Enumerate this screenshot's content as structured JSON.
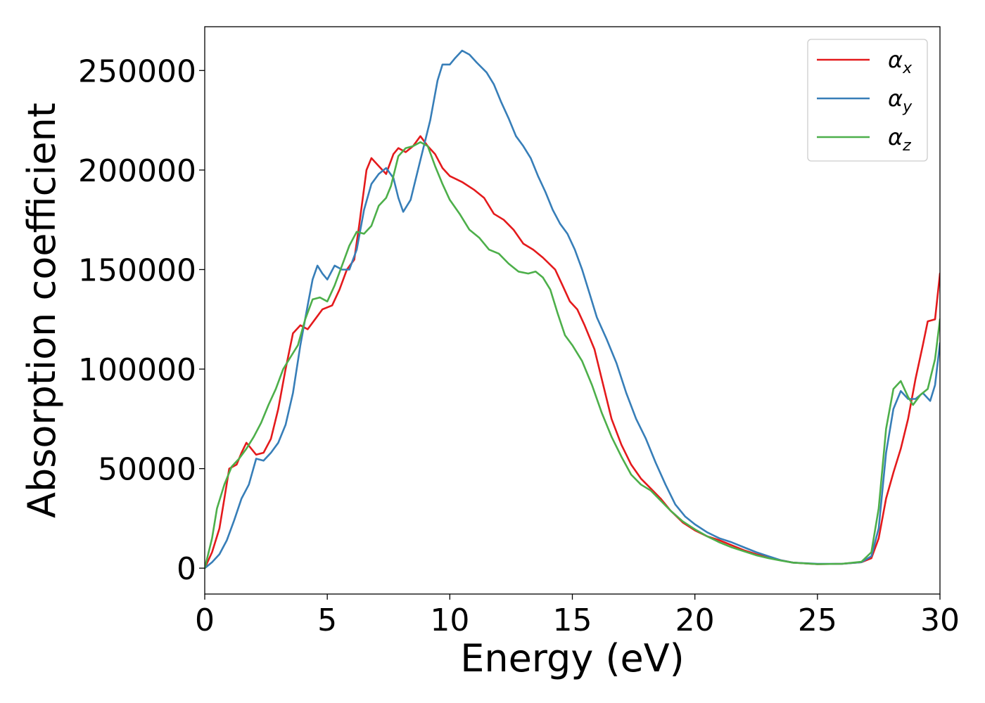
{
  "chart_data": {
    "type": "line",
    "xlabel": "Energy (eV)",
    "ylabel": "Absorption coefficient",
    "xlim": [
      0,
      30
    ],
    "ylim": [
      -13000,
      272000
    ],
    "xticks": [
      0,
      5,
      10,
      15,
      20,
      25,
      30
    ],
    "yticks": [
      0,
      50000,
      100000,
      150000,
      200000,
      250000
    ],
    "xtick_labels": [
      "0",
      "5",
      "10",
      "15",
      "20",
      "25",
      "30"
    ],
    "ytick_labels": [
      "0",
      "50000",
      "100000",
      "150000",
      "200000",
      "250000"
    ],
    "grid": false,
    "legend_position": "top-right",
    "series": [
      {
        "name": "α_x",
        "label_main": "α",
        "label_sub": "x",
        "color": "#e41a1c",
        "points": [
          [
            0,
            0
          ],
          [
            0.3,
            8000
          ],
          [
            0.6,
            20000
          ],
          [
            0.8,
            35000
          ],
          [
            1.0,
            50000
          ],
          [
            1.3,
            52000
          ],
          [
            1.5,
            58000
          ],
          [
            1.7,
            63000
          ],
          [
            1.9,
            60000
          ],
          [
            2.1,
            57000
          ],
          [
            2.4,
            58000
          ],
          [
            2.7,
            65000
          ],
          [
            3.0,
            80000
          ],
          [
            3.3,
            100000
          ],
          [
            3.6,
            118000
          ],
          [
            3.9,
            122000
          ],
          [
            4.2,
            120000
          ],
          [
            4.5,
            125000
          ],
          [
            4.8,
            130000
          ],
          [
            5.2,
            132000
          ],
          [
            5.5,
            140000
          ],
          [
            5.8,
            150000
          ],
          [
            6.1,
            155000
          ],
          [
            6.3,
            172000
          ],
          [
            6.6,
            200000
          ],
          [
            6.8,
            206000
          ],
          [
            7.1,
            202000
          ],
          [
            7.4,
            198000
          ],
          [
            7.7,
            208000
          ],
          [
            7.9,
            211000
          ],
          [
            8.2,
            209000
          ],
          [
            8.5,
            212000
          ],
          [
            8.8,
            217000
          ],
          [
            9.1,
            212000
          ],
          [
            9.4,
            208000
          ],
          [
            9.7,
            201000
          ],
          [
            10.0,
            197000
          ],
          [
            10.5,
            194000
          ],
          [
            11.0,
            190000
          ],
          [
            11.4,
            186000
          ],
          [
            11.8,
            178000
          ],
          [
            12.2,
            175000
          ],
          [
            12.6,
            170000
          ],
          [
            13.0,
            163000
          ],
          [
            13.4,
            160000
          ],
          [
            13.8,
            156000
          ],
          [
            14.3,
            150000
          ],
          [
            14.6,
            142000
          ],
          [
            14.9,
            134000
          ],
          [
            15.2,
            130000
          ],
          [
            15.5,
            122000
          ],
          [
            15.9,
            110000
          ],
          [
            16.2,
            95000
          ],
          [
            16.6,
            75000
          ],
          [
            17.0,
            62000
          ],
          [
            17.4,
            52000
          ],
          [
            17.8,
            45000
          ],
          [
            18.2,
            40000
          ],
          [
            18.6,
            35000
          ],
          [
            19.0,
            29000
          ],
          [
            19.5,
            23000
          ],
          [
            20.0,
            19000
          ],
          [
            20.5,
            16000
          ],
          [
            21.0,
            14000
          ],
          [
            21.5,
            11500
          ],
          [
            22.0,
            9000
          ],
          [
            22.5,
            7000
          ],
          [
            23.0,
            5500
          ],
          [
            23.5,
            4000
          ],
          [
            24.0,
            2800
          ],
          [
            25.0,
            2000
          ],
          [
            26.0,
            2200
          ],
          [
            26.8,
            3000
          ],
          [
            27.2,
            5000
          ],
          [
            27.5,
            15000
          ],
          [
            27.8,
            35000
          ],
          [
            28.1,
            48000
          ],
          [
            28.4,
            60000
          ],
          [
            28.7,
            75000
          ],
          [
            29.0,
            95000
          ],
          [
            29.3,
            112000
          ],
          [
            29.5,
            124000
          ],
          [
            29.8,
            125000
          ],
          [
            30.0,
            148000
          ]
        ]
      },
      {
        "name": "α_y",
        "label_main": "α",
        "label_sub": "y",
        "color": "#377eb8",
        "points": [
          [
            0,
            0
          ],
          [
            0.3,
            3000
          ],
          [
            0.6,
            7000
          ],
          [
            0.9,
            14000
          ],
          [
            1.2,
            24000
          ],
          [
            1.5,
            35000
          ],
          [
            1.8,
            42000
          ],
          [
            2.1,
            55000
          ],
          [
            2.4,
            54000
          ],
          [
            2.7,
            58000
          ],
          [
            3.0,
            63000
          ],
          [
            3.3,
            72000
          ],
          [
            3.6,
            88000
          ],
          [
            3.9,
            112000
          ],
          [
            4.2,
            132000
          ],
          [
            4.4,
            145000
          ],
          [
            4.6,
            152000
          ],
          [
            4.8,
            148000
          ],
          [
            5.0,
            145000
          ],
          [
            5.3,
            152000
          ],
          [
            5.6,
            150000
          ],
          [
            5.9,
            150000
          ],
          [
            6.2,
            160000
          ],
          [
            6.5,
            180000
          ],
          [
            6.8,
            193000
          ],
          [
            7.1,
            198000
          ],
          [
            7.4,
            201000
          ],
          [
            7.7,
            196000
          ],
          [
            7.9,
            186000
          ],
          [
            8.1,
            179000
          ],
          [
            8.4,
            185000
          ],
          [
            8.8,
            205000
          ],
          [
            9.2,
            225000
          ],
          [
            9.5,
            245000
          ],
          [
            9.7,
            253000
          ],
          [
            10.0,
            253000
          ],
          [
            10.2,
            256000
          ],
          [
            10.5,
            260000
          ],
          [
            10.8,
            258000
          ],
          [
            11.1,
            254000
          ],
          [
            11.5,
            249000
          ],
          [
            11.8,
            243000
          ],
          [
            12.1,
            234000
          ],
          [
            12.4,
            226000
          ],
          [
            12.7,
            217000
          ],
          [
            13.0,
            212000
          ],
          [
            13.3,
            206000
          ],
          [
            13.6,
            197000
          ],
          [
            13.9,
            189000
          ],
          [
            14.2,
            180000
          ],
          [
            14.5,
            173000
          ],
          [
            14.8,
            168000
          ],
          [
            15.1,
            160000
          ],
          [
            15.4,
            150000
          ],
          [
            15.7,
            138000
          ],
          [
            16.0,
            126000
          ],
          [
            16.4,
            115000
          ],
          [
            16.8,
            103000
          ],
          [
            17.2,
            88000
          ],
          [
            17.6,
            75000
          ],
          [
            18.0,
            65000
          ],
          [
            18.4,
            53000
          ],
          [
            18.8,
            42000
          ],
          [
            19.2,
            32000
          ],
          [
            19.6,
            26000
          ],
          [
            20.0,
            22000
          ],
          [
            20.5,
            18000
          ],
          [
            21.0,
            15000
          ],
          [
            21.5,
            13000
          ],
          [
            22.0,
            10500
          ],
          [
            22.5,
            8000
          ],
          [
            23.0,
            6000
          ],
          [
            23.5,
            4000
          ],
          [
            24.0,
            2800
          ],
          [
            25.0,
            2200
          ],
          [
            26.0,
            2200
          ],
          [
            26.8,
            3000
          ],
          [
            27.2,
            6000
          ],
          [
            27.5,
            20000
          ],
          [
            27.8,
            58000
          ],
          [
            28.1,
            80000
          ],
          [
            28.4,
            89000
          ],
          [
            28.7,
            85000
          ],
          [
            29.0,
            85000
          ],
          [
            29.3,
            88000
          ],
          [
            29.6,
            84000
          ],
          [
            29.8,
            92000
          ],
          [
            30.0,
            113000
          ]
        ]
      },
      {
        "name": "α_z",
        "label_main": "α",
        "label_sub": "z",
        "color": "#4daf4a",
        "points": [
          [
            0,
            0
          ],
          [
            0.3,
            15000
          ],
          [
            0.5,
            30000
          ],
          [
            0.8,
            42000
          ],
          [
            1.1,
            51000
          ],
          [
            1.4,
            55000
          ],
          [
            1.7,
            60000
          ],
          [
            2.0,
            66000
          ],
          [
            2.3,
            73000
          ],
          [
            2.6,
            82000
          ],
          [
            2.9,
            90000
          ],
          [
            3.2,
            100000
          ],
          [
            3.5,
            106000
          ],
          [
            3.8,
            112000
          ],
          [
            4.1,
            125000
          ],
          [
            4.4,
            135000
          ],
          [
            4.7,
            136000
          ],
          [
            5.0,
            134000
          ],
          [
            5.3,
            142000
          ],
          [
            5.6,
            152000
          ],
          [
            5.9,
            162000
          ],
          [
            6.2,
            169000
          ],
          [
            6.5,
            168000
          ],
          [
            6.8,
            172000
          ],
          [
            7.1,
            182000
          ],
          [
            7.4,
            186000
          ],
          [
            7.6,
            192000
          ],
          [
            7.9,
            207000
          ],
          [
            8.2,
            211000
          ],
          [
            8.5,
            212000
          ],
          [
            8.8,
            214000
          ],
          [
            9.1,
            212000
          ],
          [
            9.4,
            202000
          ],
          [
            9.7,
            193000
          ],
          [
            10.0,
            185000
          ],
          [
            10.4,
            178000
          ],
          [
            10.8,
            170000
          ],
          [
            11.2,
            166000
          ],
          [
            11.6,
            160000
          ],
          [
            12.0,
            158000
          ],
          [
            12.4,
            153000
          ],
          [
            12.8,
            149000
          ],
          [
            13.2,
            148000
          ],
          [
            13.5,
            149000
          ],
          [
            13.8,
            146000
          ],
          [
            14.1,
            140000
          ],
          [
            14.4,
            128000
          ],
          [
            14.7,
            117000
          ],
          [
            15.0,
            112000
          ],
          [
            15.4,
            104000
          ],
          [
            15.8,
            92000
          ],
          [
            16.2,
            78000
          ],
          [
            16.6,
            66000
          ],
          [
            17.0,
            56000
          ],
          [
            17.4,
            47000
          ],
          [
            17.8,
            42000
          ],
          [
            18.2,
            39000
          ],
          [
            18.6,
            34000
          ],
          [
            19.0,
            29000
          ],
          [
            19.5,
            23500
          ],
          [
            20.0,
            19500
          ],
          [
            20.5,
            16000
          ],
          [
            21.0,
            13000
          ],
          [
            21.5,
            10500
          ],
          [
            22.0,
            8500
          ],
          [
            22.5,
            6500
          ],
          [
            23.0,
            5000
          ],
          [
            23.5,
            3800
          ],
          [
            24.0,
            2800
          ],
          [
            25.0,
            2000
          ],
          [
            26.0,
            2200
          ],
          [
            26.8,
            3200
          ],
          [
            27.2,
            8000
          ],
          [
            27.5,
            30000
          ],
          [
            27.8,
            70000
          ],
          [
            28.1,
            90000
          ],
          [
            28.4,
            94000
          ],
          [
            28.7,
            86000
          ],
          [
            28.9,
            82000
          ],
          [
            29.2,
            87000
          ],
          [
            29.5,
            90000
          ],
          [
            29.8,
            105000
          ],
          [
            30.0,
            125000
          ]
        ]
      }
    ]
  }
}
